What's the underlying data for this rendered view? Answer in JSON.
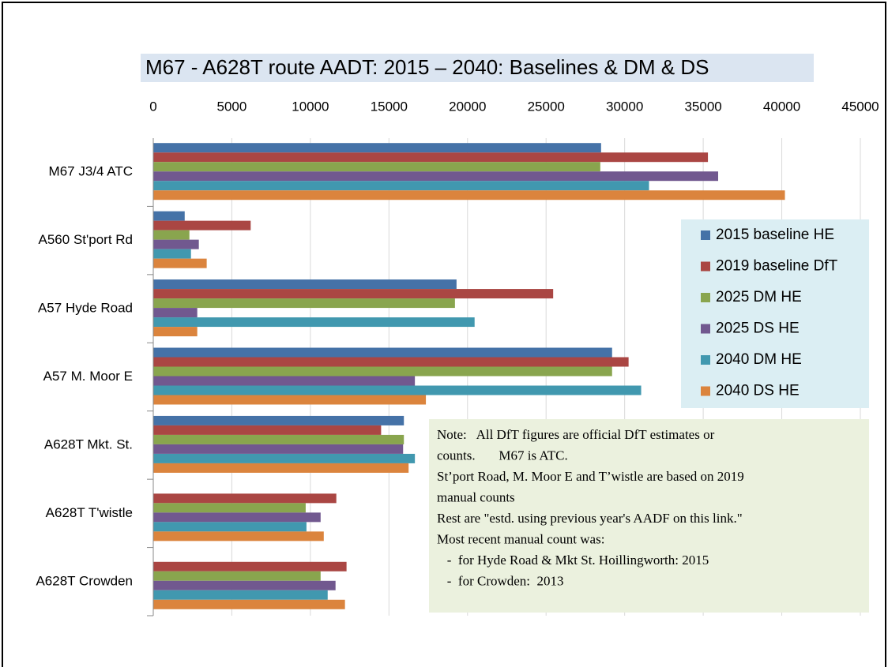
{
  "chart_data": {
    "type": "bar",
    "orientation": "horizontal",
    "title": "M67 - A628T route AADT:  2015 – 2040:  Baselines &  DM & DS",
    "categories": [
      "M67 J3/4 ATC",
      "A560 St'port Rd",
      "A57 Hyde Road",
      "A57 M. Moor E",
      "A628T Mkt. St.",
      "A628T  T'wistle",
      "A628T Crowden"
    ],
    "series": [
      {
        "name": "2015 baseline HE",
        "color": "#4572a7",
        "values": [
          28500,
          2000,
          19300,
          29200,
          15950,
          null,
          null
        ]
      },
      {
        "name": "2019 baseline DfT",
        "color": "#aa4643",
        "values": [
          35300,
          6200,
          25450,
          30250,
          14500,
          11650,
          12300
        ]
      },
      {
        "name": "2025 DM HE",
        "color": "#89a54e",
        "values": [
          28450,
          2300,
          19200,
          29200,
          15950,
          9700,
          10650
        ]
      },
      {
        "name": "2025 DS HE",
        "color": "#71588f",
        "values": [
          35950,
          2900,
          2800,
          16650,
          15900,
          10650,
          11600
        ]
      },
      {
        "name": "2040 DM HE",
        "color": "#4198af",
        "values": [
          31550,
          2400,
          20450,
          31050,
          16650,
          9750,
          11100
        ]
      },
      {
        "name": "2040 DS HE",
        "color": "#db843d",
        "values": [
          40200,
          3400,
          2800,
          17350,
          16250,
          10850,
          12200
        ]
      }
    ],
    "xlim": [
      0,
      45000
    ],
    "xticks": [
      0,
      5000,
      10000,
      15000,
      20000,
      25000,
      30000,
      35000,
      40000,
      45000
    ],
    "grid": true,
    "legend": "right",
    "note": [
      "Note:   All DfT figures are official DfT estimates or",
      "counts.       M67 is ATC.",
      "St’port Road, M. Moor E and T’wistle are based on 2019",
      "manual counts",
      "Rest are \"estd. using previous year's AADF on this link.\"",
      "Most recent manual count was:",
      "   -  for Hyde Road & Mkt St. Hoillingworth: 2015",
      "   -  for Crowden:  2013"
    ]
  }
}
